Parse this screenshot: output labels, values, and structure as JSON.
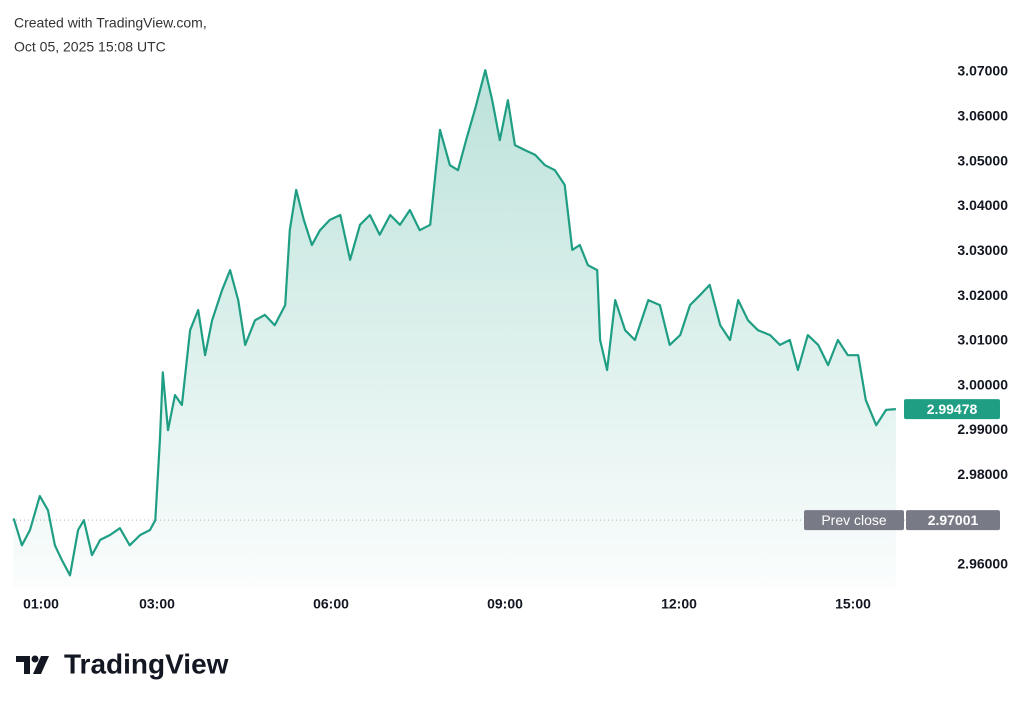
{
  "header": {
    "line1": "Created with TradingView.com,",
    "line2": "Oct 05, 2025 15:08 UTC"
  },
  "footer": {
    "logo": "TradingView"
  },
  "chart_data": {
    "type": "area",
    "color": "#1f9e84",
    "grid": false,
    "x": [
      0.53,
      0.67,
      0.81,
      0.98,
      1.12,
      1.24,
      1.36,
      1.5,
      1.64,
      1.74,
      1.88,
      2.02,
      2.19,
      2.36,
      2.53,
      2.71,
      2.88,
      2.97,
      3.05,
      3.1,
      3.19,
      3.31,
      3.43,
      3.57,
      3.71,
      3.83,
      3.95,
      4.12,
      4.26,
      4.4,
      4.52,
      4.69,
      4.86,
      5.03,
      5.21,
      5.29,
      5.4,
      5.53,
      5.67,
      5.81,
      5.98,
      6.16,
      6.33,
      6.5,
      6.67,
      6.84,
      7.02,
      7.19,
      7.36,
      7.53,
      7.71,
      7.88,
      8.05,
      8.19,
      8.33,
      8.48,
      8.66,
      8.78,
      8.91,
      9.05,
      9.17,
      9.34,
      9.52,
      9.69,
      9.86,
      10.03,
      10.16,
      10.29,
      10.43,
      10.59,
      10.64,
      10.76,
      10.9,
      11.07,
      11.24,
      11.47,
      11.67,
      11.84,
      12.02,
      12.19,
      12.36,
      12.53,
      12.71,
      12.88,
      13.02,
      13.19,
      13.36,
      13.57,
      13.74,
      13.91,
      14.05,
      14.22,
      14.4,
      14.57,
      14.74,
      14.91,
      15.09,
      15.22,
      15.4,
      15.57,
      15.74
    ],
    "values": [
      2.9704,
      2.9644,
      2.9678,
      2.9754,
      2.9722,
      2.9644,
      2.9611,
      2.9577,
      2.9678,
      2.97,
      2.9622,
      2.9656,
      2.9667,
      2.9682,
      2.9644,
      2.9667,
      2.9678,
      2.97,
      2.9879,
      3.003,
      2.9901,
      2.9979,
      2.9957,
      3.0124,
      3.0169,
      3.0068,
      3.0146,
      3.0213,
      3.0258,
      3.0191,
      3.0091,
      3.0146,
      3.0158,
      3.0135,
      3.018,
      3.0347,
      3.0437,
      3.0371,
      3.0314,
      3.0347,
      3.037,
      3.0381,
      3.0281,
      3.0359,
      3.0381,
      3.0337,
      3.0381,
      3.0359,
      3.0392,
      3.0347,
      3.0359,
      3.0571,
      3.0492,
      3.0481,
      3.0548,
      3.0615,
      3.0704,
      3.0637,
      3.0548,
      3.0637,
      3.0537,
      3.0526,
      3.0515,
      3.0492,
      3.0481,
      3.0448,
      3.0303,
      3.0314,
      3.0269,
      3.0258,
      3.0102,
      3.0035,
      3.0191,
      3.0124,
      3.0102,
      3.0191,
      3.018,
      3.0091,
      3.0113,
      3.018,
      3.0202,
      3.0225,
      3.0135,
      3.0102,
      3.0191,
      3.0146,
      3.0124,
      3.0113,
      3.0091,
      3.0102,
      3.0035,
      3.0113,
      3.0091,
      3.0046,
      3.0102,
      3.0068,
      3.0068,
      2.9968,
      2.9912,
      2.9946,
      2.99478
    ],
    "last_price_label": "2.99478",
    "prev_close": {
      "label": "Prev close",
      "value": 2.97001
    },
    "xlim": [
      0.5,
      16.0
    ],
    "xticks": [
      {
        "value": 1,
        "label": "01:00"
      },
      {
        "value": 3,
        "label": "03:00"
      },
      {
        "value": 6,
        "label": "06:00"
      },
      {
        "value": 9,
        "label": "09:00"
      },
      {
        "value": 12,
        "label": "12:00"
      },
      {
        "value": 15,
        "label": "15:00"
      }
    ],
    "ylim": [
      2.955,
      3.075
    ],
    "yticks": [
      {
        "value": 2.96,
        "label": "2.96000"
      },
      {
        "value": 2.98,
        "label": "2.98000"
      },
      {
        "value": 2.99,
        "label": "2.99000"
      },
      {
        "value": 3.0,
        "label": "3.00000"
      },
      {
        "value": 3.01,
        "label": "3.01000"
      },
      {
        "value": 3.02,
        "label": "3.02000"
      },
      {
        "value": 3.03,
        "label": "3.03000"
      },
      {
        "value": 3.04,
        "label": "3.04000"
      },
      {
        "value": 3.05,
        "label": "3.05000"
      },
      {
        "value": 3.06,
        "label": "3.06000"
      },
      {
        "value": 3.07,
        "label": "3.07000"
      }
    ]
  }
}
